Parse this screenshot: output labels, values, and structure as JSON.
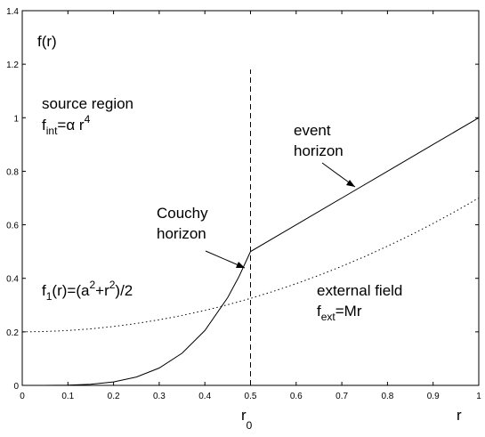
{
  "chart_data": {
    "type": "line",
    "xlim": [
      0,
      1
    ],
    "ylim": [
      0,
      1.4
    ],
    "x_ticks": [
      "0",
      "0.1",
      "0.2",
      "0.3",
      "0.4",
      "0.5",
      "0.6",
      "0.7",
      "0.8",
      "0.9",
      "1"
    ],
    "y_ticks": [
      "0",
      "0.2",
      "0.4",
      "0.6",
      "0.8",
      "1",
      "1.2",
      "1.4"
    ],
    "xlabel": "r",
    "grid": false,
    "r0": 0.5,
    "series": [
      {
        "id": "f",
        "style": "solid",
        "color": "#000000",
        "description_formula": "0.5*(r/0.5)^4 for r<0.5; r for r>=0.5",
        "x": [
          0,
          0.05,
          0.1,
          0.15,
          0.2,
          0.25,
          0.3,
          0.35,
          0.4,
          0.45,
          0.475,
          0.5,
          0.6,
          0.7,
          0.8,
          0.9,
          1.0
        ],
        "y": [
          0,
          5e-05,
          0.0008,
          0.00405,
          0.0128,
          0.03125,
          0.0648,
          0.12005,
          0.2048,
          0.32805,
          0.4073,
          0.5,
          0.6,
          0.7,
          0.8,
          0.9,
          1.0
        ]
      },
      {
        "id": "f1",
        "style": "dotted",
        "color": "#000000",
        "x": [
          0,
          0.05,
          0.1,
          0.15,
          0.2,
          0.25,
          0.3,
          0.35,
          0.4,
          0.45,
          0.5,
          0.55,
          0.6,
          0.65,
          0.7,
          0.75,
          0.8,
          0.85,
          0.9,
          0.95,
          1.0
        ],
        "y": [
          0.2,
          0.20125,
          0.205,
          0.21125,
          0.22,
          0.23125,
          0.245,
          0.26125,
          0.28,
          0.30125,
          0.325,
          0.35125,
          0.38,
          0.41125,
          0.445,
          0.48125,
          0.52,
          0.56125,
          0.605,
          0.65125,
          0.7
        ]
      }
    ],
    "vline": {
      "x": 0.5,
      "y_from": 0,
      "y_to": 1.18,
      "style": "dashed"
    }
  },
  "labels": {
    "f_r": "f(r)",
    "source_region": "source region",
    "f_int": "f",
    "f_int_sub": "int",
    "f_int_eq": "=α r",
    "f_int_sup": "4",
    "event": "event",
    "horizon1": "horizon",
    "couchy": "Couchy",
    "horizon2": "horizon",
    "f1_f": "f",
    "f1_sub": "1",
    "f1_mid": "(r)=(a",
    "f1_sup1": "2",
    "f1_plus": "+r",
    "f1_sup2": "2",
    "f1_end": ")/2",
    "external_field": "external field",
    "f_ext": "f",
    "f_ext_sub": "ext",
    "f_ext_eq": "=Mr",
    "r_axis": "r",
    "r0_r": "r",
    "r0_sub": "0"
  }
}
